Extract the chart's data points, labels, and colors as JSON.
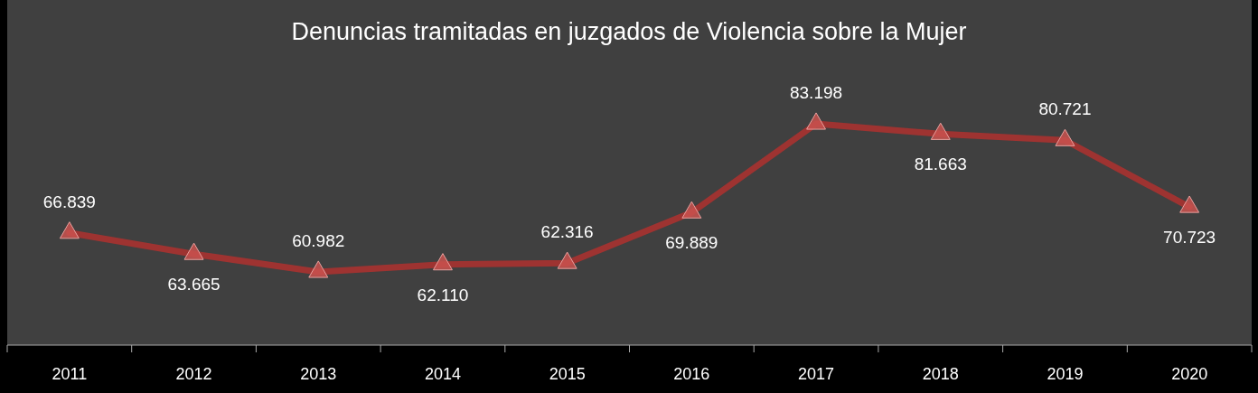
{
  "chart_data": {
    "type": "line",
    "title": "Denuncias tramitadas en juzgados de Violencia sobre la Mujer",
    "categories": [
      "2011",
      "2012",
      "2013",
      "2014",
      "2015",
      "2016",
      "2017",
      "2018",
      "2019",
      "2020"
    ],
    "series": [
      {
        "color": "#9e3331",
        "values": [
          66839,
          63665,
          60982,
          62110,
          62316,
          69889,
          83198,
          81663,
          80721,
          70723
        ],
        "value_labels": [
          "66.839",
          "63.665",
          "60.982",
          "62.110",
          "62.316",
          "69.889",
          "83.198",
          "81.663",
          "80.721",
          "70.723"
        ]
      }
    ],
    "marker": "triangle",
    "data_labels": true
  }
}
